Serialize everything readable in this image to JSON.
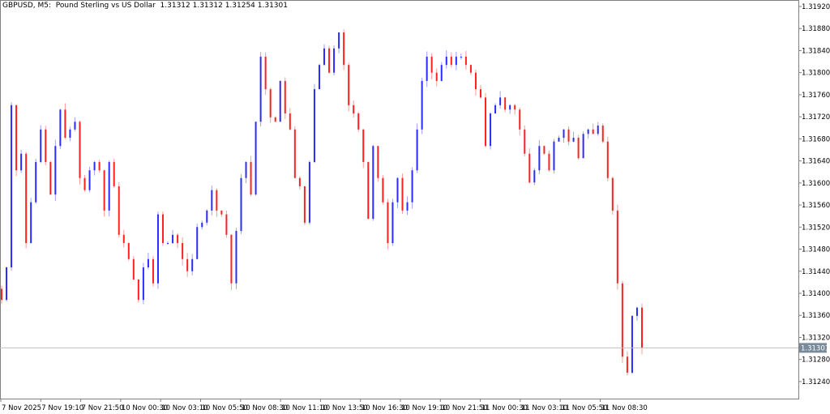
{
  "header": {
    "title": "GBPUSD, M5:  Pound Sterling vs US Dollar  1.31312 1.31312 1.31254 1.31301"
  },
  "chart_data": {
    "type": "candlestick",
    "symbol": "GBPUSD",
    "timeframe": "M5",
    "description": "Pound Sterling vs US Dollar",
    "last_bar": {
      "open": 1.31312,
      "high": 1.31312,
      "low": 1.31254,
      "close": 1.31301
    },
    "current_price": 1.31301,
    "ylim": [
      1.31208,
      1.31938
    ],
    "y_ticks": [
      "1.31920",
      "1.31880",
      "1.31840",
      "1.31800",
      "1.31760",
      "1.31720",
      "1.31680",
      "1.31640",
      "1.31600",
      "1.31560",
      "1.31520",
      "1.31480",
      "1.31440",
      "1.31400",
      "1.31360",
      "1.31320",
      "1.31280",
      "1.31240"
    ],
    "x_ticks": [
      "7 Nov 2025",
      "7 Nov 19:10",
      "7 Nov 21:50",
      "10 Nov 00:30",
      "10 Nov 03:10",
      "10 Nov 05:50",
      "10 Nov 08:30",
      "10 Nov 11:10",
      "10 Nov 13:50",
      "10 Nov 16:30",
      "10 Nov 19:10",
      "10 Nov 21:50",
      "11 Nov 00:30",
      "11 Nov 03:10",
      "11 Nov 05:50",
      "11 Nov 08:30"
    ],
    "colors": {
      "up": "#2b2bff",
      "down": "#ff2020",
      "price_line": "#c0c0c0",
      "price_label_bg": "#7a8a9a"
    },
    "closes": [
      1.31388,
      1.31447,
      1.31741,
      1.31623,
      1.31653,
      1.31491,
      1.31565,
      1.31638,
      1.31697,
      1.31638,
      1.31579,
      1.31667,
      1.31733,
      1.31682,
      1.31697,
      1.31711,
      1.31609,
      1.31587,
      1.31623,
      1.31638,
      1.31623,
      1.3155,
      1.31638,
      1.31594,
      1.31506,
      1.31491,
      1.31462,
      1.31425,
      1.31388,
      1.31447,
      1.31462,
      1.31418,
      1.31543,
      1.31491,
      1.31491,
      1.31506,
      1.31491,
      1.31462,
      1.3144,
      1.31462,
      1.3152,
      1.31528,
      1.3155,
      1.31587,
      1.3155,
      1.31543,
      1.31506,
      1.31418,
      1.31513,
      1.31609,
      1.31638,
      1.31579,
      1.31711,
      1.31829,
      1.3177,
      1.31719,
      1.31711,
      1.31785,
      1.31726,
      1.31697,
      1.31609,
      1.31594,
      1.31528,
      1.31638,
      1.3177,
      1.31814,
      1.31844,
      1.318,
      1.31844,
      1.31873,
      1.31814,
      1.31741,
      1.31726,
      1.31697,
      1.31638,
      1.31535,
      1.31667,
      1.31609,
      1.31565,
      1.31491,
      1.31565,
      1.31609,
      1.3155,
      1.31565,
      1.31623,
      1.31697,
      1.31785,
      1.31829,
      1.318,
      1.31785,
      1.31814,
      1.31829,
      1.31814,
      1.31829,
      1.31829,
      1.31814,
      1.318,
      1.3177,
      1.31755,
      1.31667,
      1.31726,
      1.31741,
      1.31755,
      1.31733,
      1.31741,
      1.31733,
      1.31697,
      1.31653,
      1.31601,
      1.31623,
      1.31667,
      1.31653,
      1.31623,
      1.31675,
      1.31682,
      1.31697,
      1.31675,
      1.31682,
      1.31645,
      1.31689,
      1.31697,
      1.31689,
      1.31704,
      1.31675,
      1.31609,
      1.3155,
      1.31418,
      1.31285,
      1.31256,
      1.31359,
      1.31374,
      1.31301
    ]
  }
}
